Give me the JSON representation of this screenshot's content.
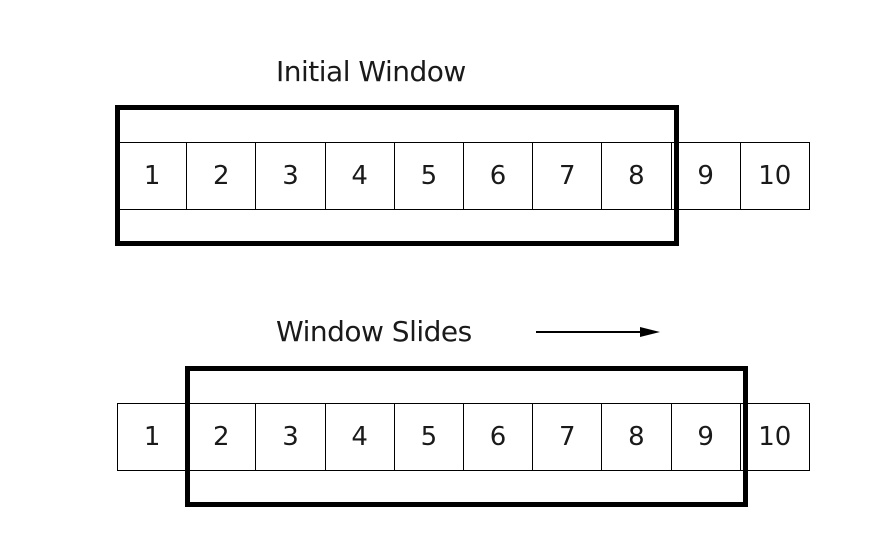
{
  "captions": {
    "initial": "Initial Window",
    "slides": "Window Slides"
  },
  "rows": {
    "top": [
      "1",
      "2",
      "3",
      "4",
      "5",
      "6",
      "7",
      "8",
      "9",
      "10"
    ],
    "bottom": [
      "1",
      "2",
      "3",
      "4",
      "5",
      "6",
      "7",
      "8",
      "9",
      "10"
    ]
  },
  "windows": {
    "initial": {
      "from_item": 1,
      "to_item": 8
    },
    "slid": {
      "from_item": 2,
      "to_item": 9
    }
  },
  "colors": {
    "line": "#000000",
    "background": "#ffffff",
    "text": "#1a1a1a"
  },
  "icons": {
    "direction": "arrow-right-icon"
  }
}
